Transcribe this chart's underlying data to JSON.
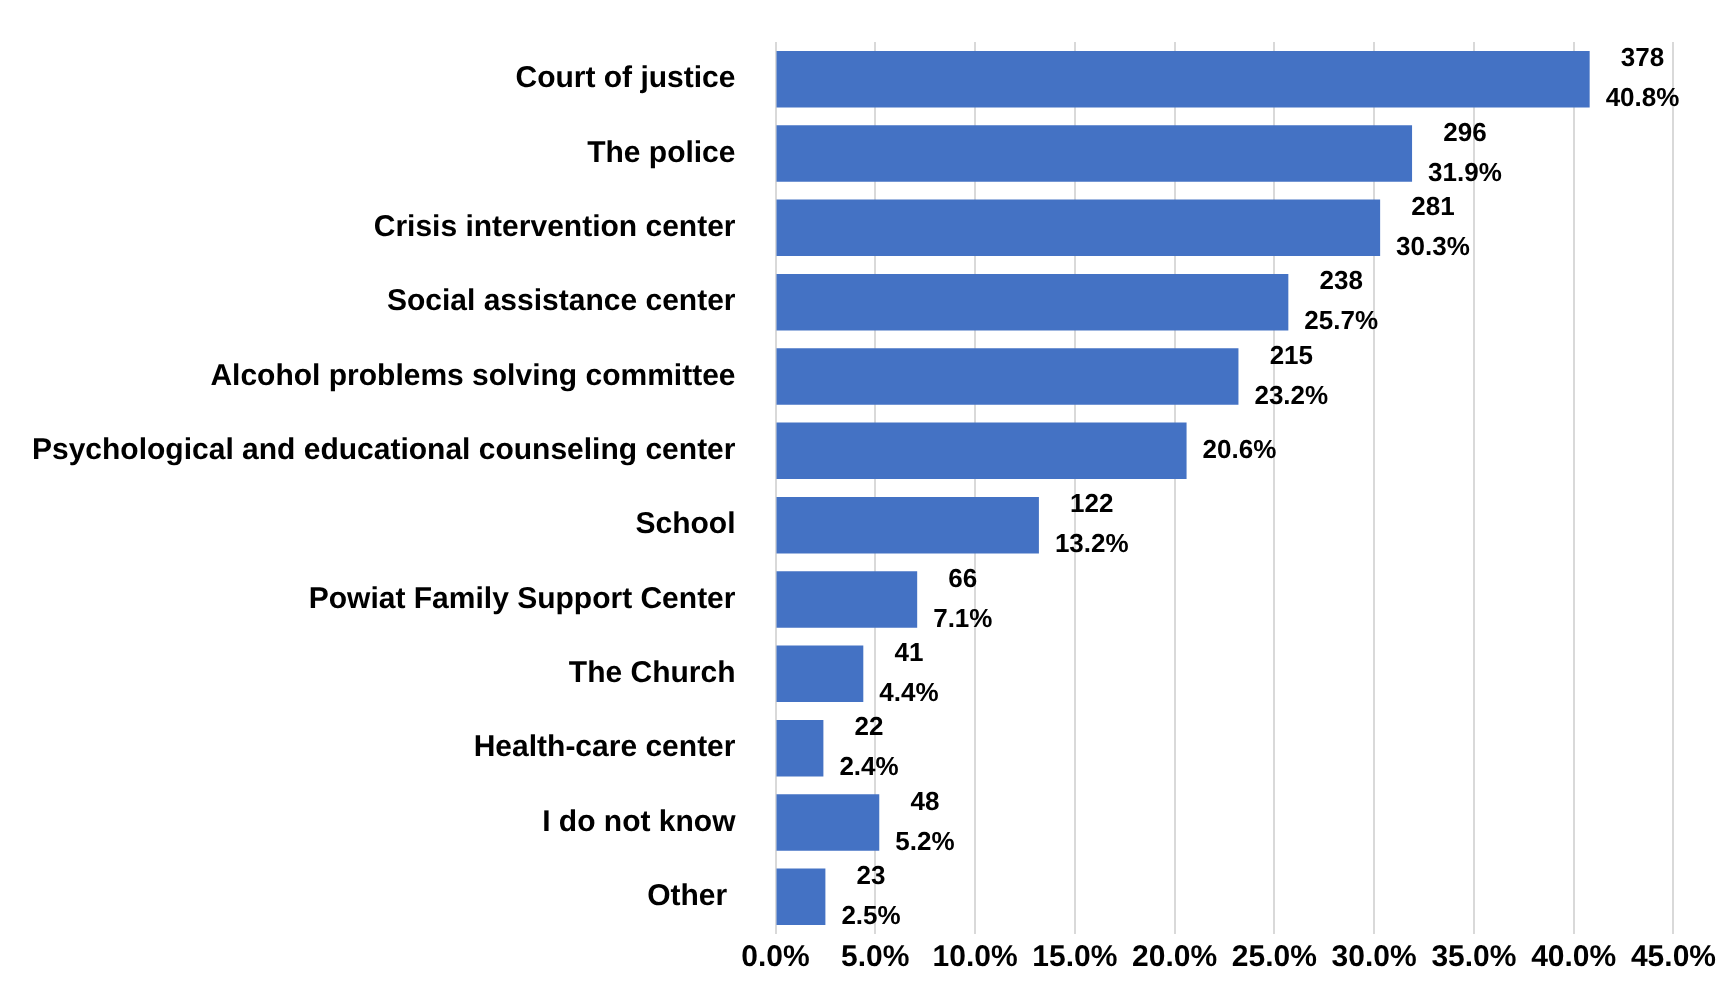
{
  "chart_data": {
    "type": "bar",
    "orientation": "horizontal",
    "categories": [
      "Court of justice",
      "The police",
      "Crisis intervention center",
      "Social assistance center",
      "Alcohol problems solving committee",
      "Psychological and educational counseling center",
      "School",
      "Powiat Family Support Center",
      "The Church",
      "Health-care center",
      "I do not know",
      "Other "
    ],
    "values": [
      40.8,
      31.9,
      30.3,
      25.7,
      23.2,
      20.6,
      13.2,
      7.1,
      4.4,
      2.4,
      5.2,
      2.5
    ],
    "value_labels": [
      "378\n40.8%",
      "296\n31.9%",
      "281\n30.3%",
      "238\n25.7%",
      "215\n23.2%",
      "20.6%",
      "122\n13.2%",
      "66\n7.1%",
      "41\n4.4%",
      "22\n2.4%",
      "48\n5.2%",
      "23\n2.5%"
    ],
    "color": "#4472c4",
    "xlim": [
      0,
      45
    ],
    "xticks": [
      {
        "value": 0,
        "label": "0.0%"
      },
      {
        "value": 5,
        "label": "5.0%"
      },
      {
        "value": 10,
        "label": "10.0%"
      },
      {
        "value": 15,
        "label": "15.0%"
      },
      {
        "value": 20,
        "label": "20.0%"
      },
      {
        "value": 25,
        "label": "25.0%"
      },
      {
        "value": 30,
        "label": "30.0%"
      },
      {
        "value": 35,
        "label": "35.0%"
      },
      {
        "value": 40,
        "label": "40.0%"
      },
      {
        "value": 45,
        "label": "45.0%"
      }
    ],
    "grid": "x",
    "legend": false
  }
}
